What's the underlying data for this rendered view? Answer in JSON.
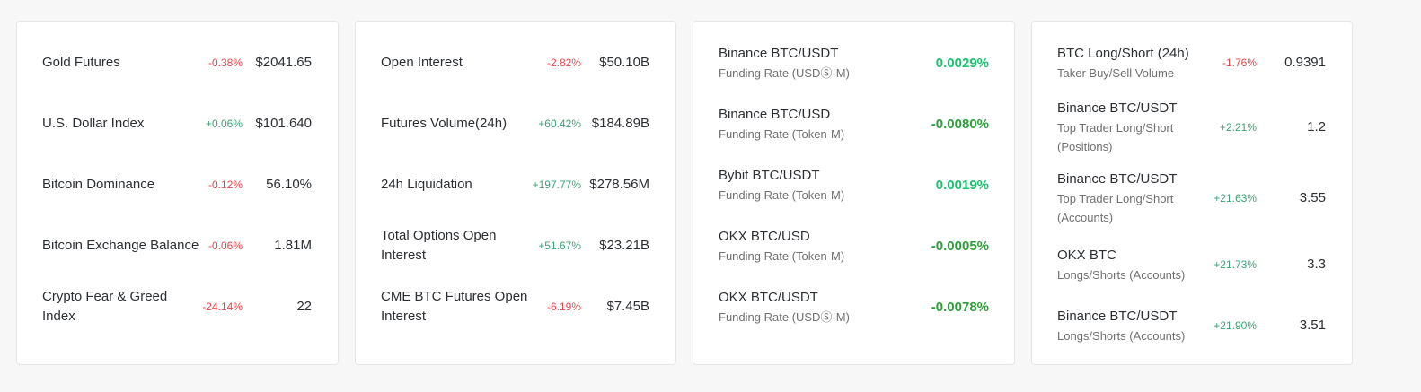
{
  "colors": {
    "positive": "#3fa276",
    "negative": "#e4484c",
    "rate_bright_green": "#1fbf6e",
    "rate_dark_green": "#2f9e3a"
  },
  "card1": {
    "rows": [
      {
        "label": "Gold Futures",
        "change": "-0.38%",
        "value": "$2041.65",
        "dir": "neg"
      },
      {
        "label": "U.S. Dollar Index",
        "change": "+0.06%",
        "value": "$101.640",
        "dir": "pos"
      },
      {
        "label": "Bitcoin Dominance",
        "change": "-0.12%",
        "value": "56.10%",
        "dir": "neg"
      },
      {
        "label": "Bitcoin Exchange Balance",
        "change": "-0.06%",
        "value": "1.81M",
        "dir": "neg"
      },
      {
        "label": "Crypto Fear & Greed Index",
        "change": "-24.14%",
        "value": "22",
        "dir": "neg"
      }
    ]
  },
  "card2": {
    "rows": [
      {
        "label": "Open Interest",
        "change": "-2.82%",
        "value": "$50.10B",
        "dir": "neg"
      },
      {
        "label": "Futures Volume(24h)",
        "change": "+60.42%",
        "value": "$184.89B",
        "dir": "pos"
      },
      {
        "label": "24h Liquidation",
        "change": "+197.77%",
        "value": "$278.56M",
        "dir": "pos"
      },
      {
        "label": "Total Options Open Interest",
        "change": "+51.67%",
        "value": "$23.21B",
        "dir": "pos"
      },
      {
        "label": "CME BTC Futures Open Interest",
        "change": "-6.19%",
        "value": "$7.45B",
        "dir": "neg"
      }
    ]
  },
  "card3": {
    "rows": [
      {
        "label": "Binance BTC/USDT",
        "sub": "Funding Rate (USDⓈ-M)",
        "rate": "0.0029%",
        "tone": "bright"
      },
      {
        "label": "Binance BTC/USD",
        "sub": "Funding Rate (Token-M)",
        "rate": "-0.0080%",
        "tone": "dark"
      },
      {
        "label": "Bybit BTC/USDT",
        "sub": "Funding Rate (Token-M)",
        "rate": "0.0019%",
        "tone": "bright"
      },
      {
        "label": "OKX BTC/USD",
        "sub": "Funding Rate (Token-M)",
        "rate": "-0.0005%",
        "tone": "dark"
      },
      {
        "label": "OKX BTC/USDT",
        "sub": "Funding Rate (USDⓈ-M)",
        "rate": "-0.0078%",
        "tone": "dark"
      }
    ]
  },
  "card4": {
    "rows": [
      {
        "label": "BTC Long/Short (24h)",
        "sub": "Taker Buy/Sell Volume",
        "change": "-1.76%",
        "value": "0.9391",
        "dir": "neg"
      },
      {
        "label": "Binance BTC/USDT",
        "sub": "Top Trader Long/Short (Positions)",
        "change": "+2.21%",
        "value": "1.2",
        "dir": "pos"
      },
      {
        "label": "Binance BTC/USDT",
        "sub": "Top Trader Long/Short (Accounts)",
        "change": "+21.63%",
        "value": "3.55",
        "dir": "pos"
      },
      {
        "label": "OKX BTC",
        "sub": "Longs/Shorts (Accounts)",
        "change": "+21.73%",
        "value": "3.3",
        "dir": "pos"
      },
      {
        "label": "Binance BTC/USDT",
        "sub": "Longs/Shorts (Accounts)",
        "change": "+21.90%",
        "value": "3.51",
        "dir": "pos"
      }
    ]
  }
}
